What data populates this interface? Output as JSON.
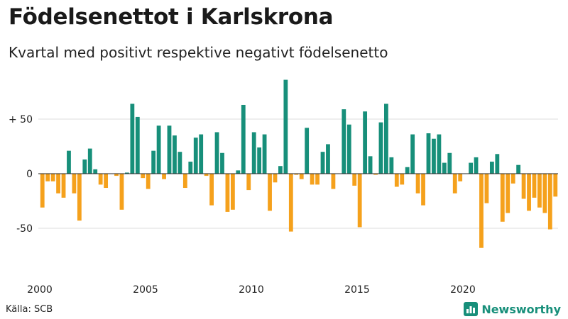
{
  "title": "Födelsenettot i Karlskrona",
  "subtitle": "Kvartal med positivt respektive negativt födelsenetto",
  "source": "Källa: SCB",
  "brand": {
    "name": "Newsworthy",
    "icon": "bar-chart-logo-icon",
    "color": "#178f7a"
  },
  "chart_data": {
    "type": "bar",
    "title": "Födelsenettot i Karlskrona",
    "subtitle": "Kvartal med positivt respektive negativt födelsenetto",
    "xlabel": "",
    "ylabel": "",
    "x_ticks": [
      "2000",
      "2005",
      "2010",
      "2015",
      "2020"
    ],
    "y_ticks": [
      {
        "value": 50,
        "label": "+ 50"
      },
      {
        "value": 0,
        "label": "0"
      },
      {
        "value": -50,
        "label": "-50"
      }
    ],
    "ylim": [
      -85,
      90
    ],
    "start_quarter": "2000 Q1",
    "grid": true,
    "colors": {
      "positive": "#178f7a",
      "negative": "#f5a11c"
    },
    "values": [
      -31,
      -7,
      -7,
      -18,
      -22,
      21,
      -18,
      -43,
      13,
      23,
      4,
      -10,
      -13,
      0,
      -2,
      -33,
      1,
      64,
      52,
      -4,
      -14,
      21,
      44,
      -5,
      44,
      35,
      20,
      -13,
      11,
      33,
      36,
      -2,
      -29,
      38,
      19,
      -35,
      -33,
      3,
      63,
      -15,
      38,
      24,
      36,
      -34,
      -8,
      7,
      86,
      -53,
      -1,
      -5,
      42,
      -10,
      -10,
      20,
      27,
      -14,
      0,
      59,
      45,
      -11,
      -49,
      57,
      16,
      -1,
      47,
      64,
      15,
      -12,
      -10,
      6,
      36,
      -18,
      -29,
      37,
      32,
      36,
      10,
      19,
      -18,
      -7,
      0,
      10,
      15,
      -68,
      -27,
      11,
      18,
      -44,
      -36,
      -9,
      8,
      -23,
      -34,
      -22,
      -31,
      -36,
      -51,
      -21
    ]
  }
}
